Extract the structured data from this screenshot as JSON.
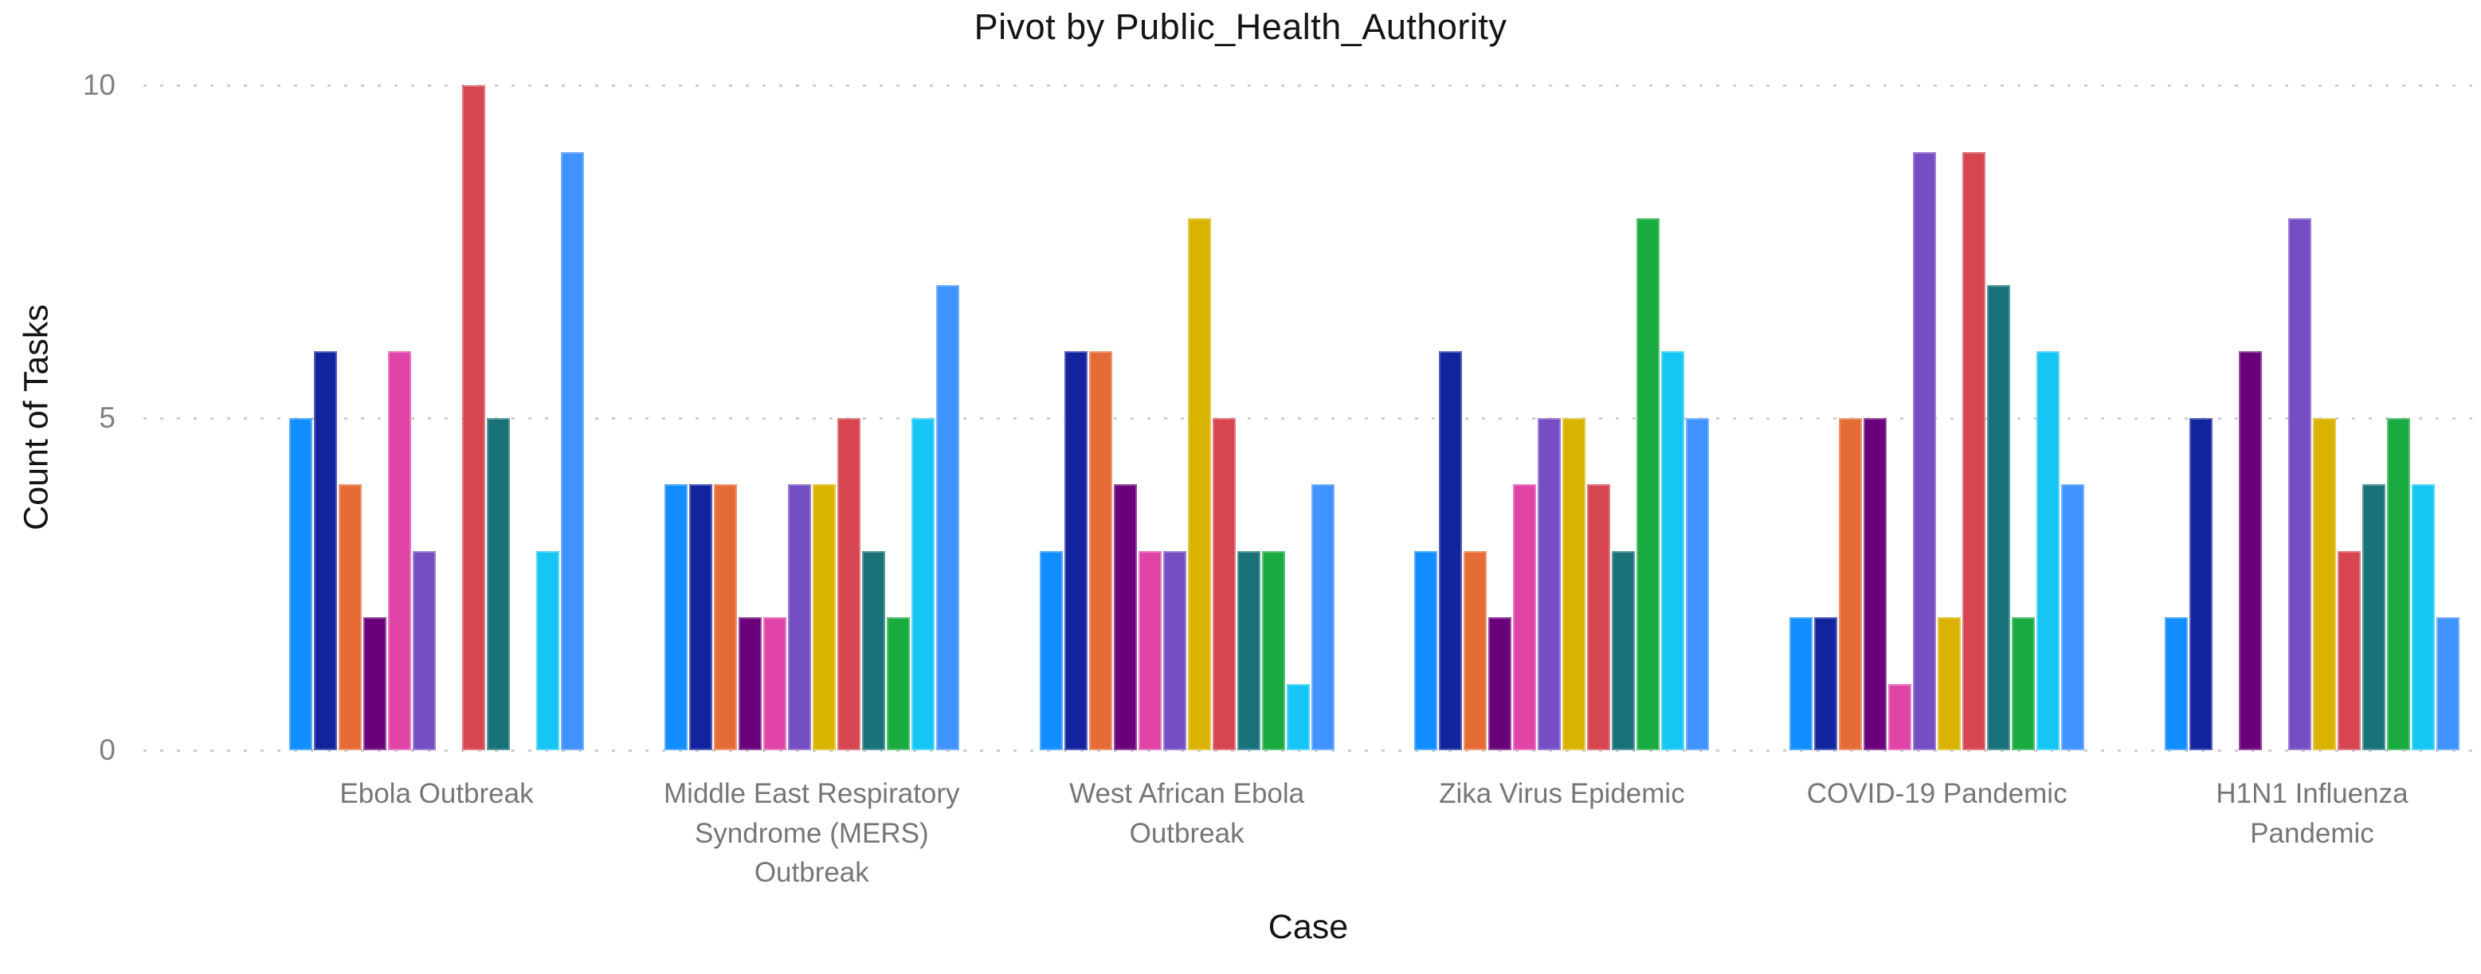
{
  "title": "Pivot by Public_Health_Authority",
  "x_axis_title": "Case",
  "y_axis_title": "Count of Tasks",
  "colors": {
    "background": "#ffffff",
    "grid": "#cdcdcd",
    "tick_label": "#808080",
    "category_label": "#767676",
    "title_text": "#141414"
  },
  "chart_data": {
    "type": "bar",
    "title": "Pivot by Public_Health_Authority",
    "xlabel": "Case",
    "ylabel": "Count of Tasks",
    "ylim": [
      0,
      10
    ],
    "yticks": [
      0,
      5,
      10
    ],
    "grid": "dotted horizontal gridlines",
    "legend": "none",
    "categories": [
      "Ebola Outbreak",
      "Middle East Respiratory Syndrome (MERS) Outbreak",
      "West African Ebola Outbreak",
      "Zika Virus Epidemic",
      "COVID-19 Pandemic",
      "H1N1 Influenza Pandemic"
    ],
    "category_lines": [
      [
        "Ebola Outbreak"
      ],
      [
        "Middle East Respiratory",
        "Syndrome (MERS)",
        "Outbreak"
      ],
      [
        "West African Ebola",
        "Outbreak"
      ],
      [
        "Zika Virus Epidemic"
      ],
      [
        "COVID-19 Pandemic"
      ],
      [
        "H1N1 Influenza",
        "Pandemic"
      ]
    ],
    "series": [
      {
        "color": "#118DFF",
        "values": [
          5,
          4,
          3,
          3,
          2,
          2
        ]
      },
      {
        "color": "#12239E",
        "values": [
          6,
          4,
          6,
          6,
          2,
          5
        ]
      },
      {
        "color": "#E66C37",
        "values": [
          4,
          4,
          6,
          3,
          5,
          0
        ]
      },
      {
        "color": "#6B007B",
        "values": [
          2,
          2,
          4,
          2,
          5,
          6
        ]
      },
      {
        "color": "#E044A7",
        "values": [
          6,
          2,
          3,
          4,
          1,
          0
        ]
      },
      {
        "color": "#744EC2",
        "values": [
          3,
          4,
          3,
          5,
          9,
          8
        ]
      },
      {
        "color": "#D9B300",
        "values": [
          0,
          4,
          8,
          5,
          2,
          5
        ]
      },
      {
        "color": "#D64550",
        "values": [
          10,
          5,
          5,
          4,
          9,
          3
        ]
      },
      {
        "color": "#197278",
        "values": [
          5,
          3,
          3,
          3,
          7,
          4
        ]
      },
      {
        "color": "#1AAB40",
        "values": [
          0,
          2,
          3,
          8,
          2,
          5
        ]
      },
      {
        "color": "#15C6F4",
        "values": [
          3,
          5,
          1,
          6,
          6,
          4
        ]
      },
      {
        "color": "#4092FF",
        "values": [
          9,
          7,
          4,
          5,
          4,
          2
        ]
      }
    ]
  }
}
